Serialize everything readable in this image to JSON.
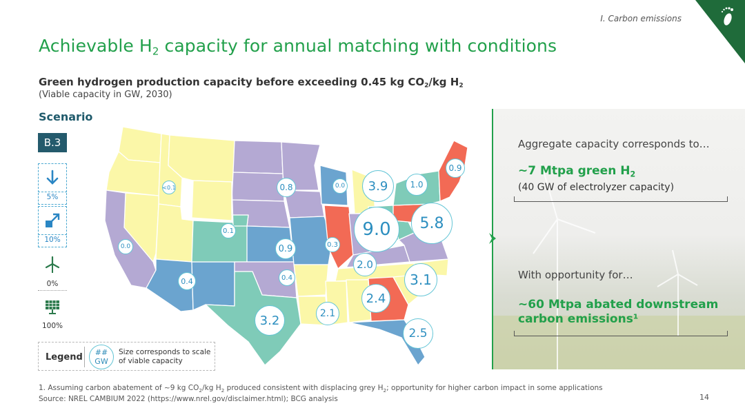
{
  "section_tag": "I. Carbon emissions",
  "title": {
    "main": "Achievable H",
    "sub": "2",
    "rest": " capacity for annual matching with conditions"
  },
  "subhead": {
    "a": "Green hydrogen production capacity before exceeding 0.45 kg CO",
    "a_sub": "2",
    "b": "/kg H",
    "b_sub": "2",
    "note": "(Viable capacity in GW, 2030)"
  },
  "scenario": {
    "label": "Scenario",
    "code": "B.3"
  },
  "levers": [
    {
      "icon": "arrow-down-icon",
      "value": "5%"
    },
    {
      "icon": "expand-arrow-icon",
      "value": "10%"
    },
    {
      "icon": "wind-turbine-icon",
      "value": "0%"
    },
    {
      "icon": "solar-panel-icon",
      "value": "100%"
    }
  ],
  "legend": {
    "label": "Legend",
    "symbol_line1": "##",
    "symbol_line2": "GW",
    "desc_line1": "Size corresponds to scale",
    "desc_line2": "of viable capacity"
  },
  "map_values": {
    "nw": "<0.1",
    "ca": "0.0",
    "az": "0.4",
    "co": "0.1",
    "wy": "0.8",
    "ks": "0.9",
    "ok": "0.4",
    "tx": "3.2",
    "wi": "0.0",
    "mi": "3.9",
    "il": "0.3",
    "oh": "9.0",
    "ny": "1.0",
    "ne_me": "0.9",
    "pa": "5.8",
    "tn": "2.0",
    "nc": "3.1",
    "ga": "2.4",
    "ms": "2.1",
    "fl": "2.5"
  },
  "panel": {
    "intro": "Aggregate capacity corresponds to…",
    "big1_main": "~7 Mtpa green H",
    "big1_sub": "2",
    "sub1": "(40 GW of electrolyzer capacity)",
    "intro2": "With opportunity for…",
    "big2_line1": "~60 Mtpa abated downstream",
    "big2_line2": "carbon emissions¹"
  },
  "footnote": {
    "line1_a": "1. Assuming carbon abatement of ~9 kg CO",
    "line1_sub1": "2",
    "line1_b": "/kg H",
    "line1_sub2": "2",
    "line1_c": " produced consistent with displacing grey H",
    "line1_sub3": "2",
    "line1_d": "; opportunity for higher carbon impact in some applications",
    "line2": "Source: NREL CAMBIUM 2022 (https://www.nrel.gov/disclaimer.html); BCG analysis"
  },
  "page_number": "14",
  "colors": {
    "accent_green": "#22a04b",
    "teal": "#245a6c",
    "map_yellow": "#fbf7a8",
    "map_lavender": "#b4a9d3",
    "map_teal": "#7fcbb8",
    "map_blue": "#6ba4cf",
    "map_red": "#f26a55"
  }
}
